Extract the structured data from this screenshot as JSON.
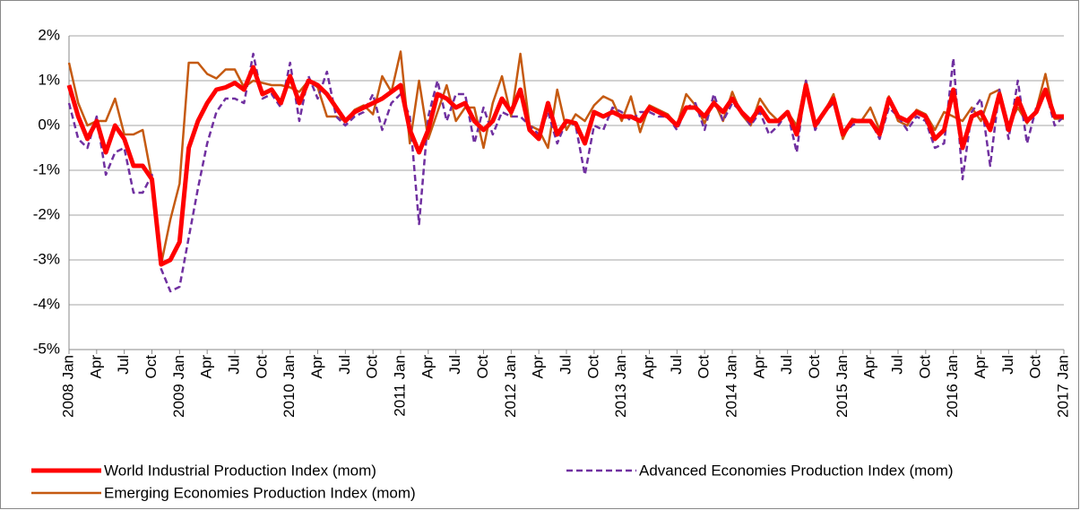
{
  "chart_data": {
    "type": "line",
    "categories": [
      "2008 Jan",
      null,
      null,
      "Apr",
      null,
      null,
      "Jul",
      null,
      null,
      "Oct",
      null,
      null,
      "2009 Jan",
      null,
      null,
      "Apr",
      null,
      null,
      "Jul",
      null,
      null,
      "Oct",
      null,
      null,
      "2010 Jan",
      null,
      null,
      "Apr",
      null,
      null,
      "Jul",
      null,
      null,
      "Oct",
      null,
      null,
      "2011 Jan",
      null,
      null,
      "Apr",
      null,
      null,
      "Jul",
      null,
      null,
      "Oct",
      null,
      null,
      "2012 Jan",
      null,
      null,
      "Apr",
      null,
      null,
      "Jul",
      null,
      null,
      "Oct",
      null,
      null,
      "2013 Jan",
      null,
      null,
      "Apr",
      null,
      null,
      "Jul",
      null,
      null,
      "Oct",
      null,
      null,
      "2014 Jan",
      null,
      null,
      "Apr",
      null,
      null,
      "Jul",
      null,
      null,
      "Oct",
      null,
      null,
      "2015 Jan",
      null,
      null,
      "Apr",
      null,
      null,
      "Jul",
      null,
      null,
      "Oct",
      null,
      null,
      "2016 Jan",
      null,
      null,
      "Apr",
      null,
      null,
      "Jul",
      null,
      null,
      "Oct",
      null,
      null,
      "2017 Jan"
    ],
    "series": [
      {
        "name": "World Industrial Production Index (mom)",
        "color": "#ff0000",
        "width": 5,
        "dash": false,
        "values": [
          0.9,
          0.2,
          -0.3,
          0.1,
          -0.6,
          0,
          -0.3,
          -0.9,
          -0.9,
          -1.2,
          -3.1,
          -3.0,
          -2.6,
          -0.5,
          0.1,
          0.5,
          0.8,
          0.85,
          0.95,
          0.8,
          1.3,
          0.7,
          0.8,
          0.5,
          1.1,
          0.5,
          1.0,
          0.9,
          0.7,
          0.4,
          0.1,
          0.3,
          0.4,
          0.5,
          0.6,
          0.75,
          0.9,
          -0.1,
          -0.6,
          -0.1,
          0.7,
          0.6,
          0.4,
          0.5,
          0.1,
          -0.1,
          0.1,
          0.6,
          0.3,
          0.8,
          -0.1,
          -0.3,
          0.5,
          -0.2,
          0.1,
          0.05,
          -0.4,
          0.3,
          0.2,
          0.3,
          0.2,
          0.2,
          0.1,
          0.4,
          0.3,
          0.2,
          0,
          0.4,
          0.4,
          0.2,
          0.5,
          0.3,
          0.6,
          0.3,
          0.1,
          0.4,
          0.1,
          0.1,
          0.3,
          -0.2,
          0.9,
          0,
          0.3,
          0.6,
          -0.2,
          0.1,
          0.1,
          0.1,
          -0.2,
          0.6,
          0.2,
          0.1,
          0.3,
          0.2,
          -0.3,
          -0.1,
          0.8,
          -0.5,
          0.2,
          0.3,
          -0.1,
          0.7,
          -0.1,
          0.6,
          0.1,
          0.3,
          0.8,
          0.2,
          0.2
        ]
      },
      {
        "name": "Advanced Economies Production Index (mom)",
        "color": "#7030a0",
        "width": 2.5,
        "dash": true,
        "values": [
          0.5,
          -0.3,
          -0.5,
          0.2,
          -1.1,
          -0.6,
          -0.5,
          -1.5,
          -1.5,
          -1.1,
          -3.2,
          -3.7,
          -3.6,
          -2.5,
          -1.4,
          -0.4,
          0.3,
          0.6,
          0.6,
          0.5,
          1.6,
          0.6,
          0.7,
          0.4,
          1.4,
          0.1,
          1.1,
          0.6,
          1.2,
          0.2,
          0,
          0.2,
          0.3,
          0.7,
          -0.1,
          0.5,
          0.7,
          0.2,
          -2.2,
          0.2,
          1.0,
          0.1,
          0.7,
          0.7,
          -0.4,
          0.4,
          -0.2,
          0.3,
          0.2,
          0.2,
          0,
          -0.2,
          0.3,
          -0.4,
          0.1,
          0,
          -1.1,
          0,
          -0.1,
          0.4,
          0.3,
          0.1,
          0.3,
          0.3,
          0.2,
          0.2,
          -0.1,
          0.4,
          0.5,
          -0.1,
          0.7,
          0.1,
          0.5,
          0.3,
          0,
          0.3,
          -0.2,
          0,
          0.3,
          -0.6,
          1.0,
          -0.1,
          0.3,
          0.5,
          -0.2,
          0,
          0.1,
          0.1,
          -0.3,
          0.4,
          0.2,
          -0.1,
          0.2,
          0.1,
          -0.5,
          -0.4,
          1.5,
          -1.2,
          0.3,
          0.6,
          -0.9,
          0.8,
          -0.3,
          1.0,
          -0.4,
          0.4,
          0.8,
          0,
          0.2
        ]
      },
      {
        "name": "Emerging Economies Production Index (mom)",
        "color": "#c55a11",
        "width": 2.5,
        "dash": false,
        "values": [
          1.4,
          0.5,
          0,
          0.1,
          0.1,
          0.6,
          -0.2,
          -0.2,
          -0.1,
          -1.2,
          -3.1,
          -2.1,
          -1.3,
          1.4,
          1.4,
          1.15,
          1.05,
          1.25,
          1.25,
          0.85,
          1.0,
          0.95,
          0.9,
          0.9,
          0.85,
          0.75,
          1.0,
          0.85,
          0.2,
          0.2,
          0.1,
          0.35,
          0.45,
          0.25,
          1.1,
          0.75,
          1.65,
          -0.4,
          1.0,
          -0.3,
          0.3,
          0.9,
          0.1,
          0.4,
          0.4,
          -0.5,
          0.5,
          1.1,
          0.2,
          1.6,
          0,
          -0.1,
          -0.5,
          0.8,
          -0.1,
          0.25,
          0.1,
          0.45,
          0.65,
          0.55,
          0.1,
          0.65,
          -0.15,
          0.45,
          0.35,
          0.25,
          0,
          0.7,
          0.45,
          0.05,
          0.55,
          0.1,
          0.75,
          0.25,
          0,
          0.6,
          0.3,
          0.1,
          0.3,
          0,
          1.0,
          -0.05,
          0.3,
          0.7,
          -0.3,
          0.15,
          0.1,
          0.4,
          -0.1,
          0.65,
          0.1,
          0,
          0.35,
          0.25,
          -0.1,
          0.3,
          0.2,
          0.1,
          0.4,
          0.1,
          0.7,
          0.8,
          0,
          0.4,
          0.05,
          0.35,
          1.15,
          0.15,
          0.15
        ]
      }
    ],
    "ylim": [
      -5,
      2
    ],
    "yticks": [
      {
        "value": -5,
        "label": "-5%"
      },
      {
        "value": -4,
        "label": "-4%"
      },
      {
        "value": -3,
        "label": "-3%"
      },
      {
        "value": -2,
        "label": "-2%"
      },
      {
        "value": -1,
        "label": "-1%"
      },
      {
        "value": 0,
        "label": "0%"
      },
      {
        "value": 1,
        "label": "1%"
      },
      {
        "value": 2,
        "label": "2%"
      }
    ],
    "grid": true
  }
}
